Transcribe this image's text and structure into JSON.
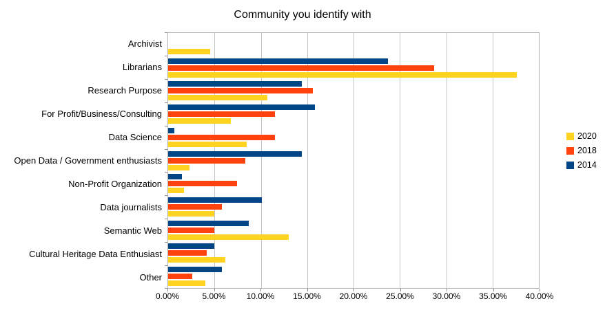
{
  "chart_data": {
    "type": "bar",
    "orientation": "horizontal",
    "title": "Community you identify with",
    "categories": [
      "Archivist",
      "Librarians",
      "Research Purpose",
      "For Profit/Business/Consulting",
      "Data Science",
      "Open Data / Government enthusiasts",
      "Non-Profit Organization",
      "Data journalists",
      "Semantic Web",
      "Cultural Heritage Data Enthusiast",
      "Other"
    ],
    "series": [
      {
        "name": "2020",
        "color": "#FFD320",
        "values": [
          4.5,
          37.6,
          10.7,
          6.8,
          8.5,
          2.3,
          1.7,
          5.0,
          13.0,
          6.2,
          4.0
        ]
      },
      {
        "name": "2018",
        "color": "#FF420E",
        "values": [
          0,
          28.7,
          15.6,
          11.5,
          11.5,
          8.3,
          7.4,
          5.8,
          5.0,
          4.2,
          2.6
        ]
      },
      {
        "name": "2014",
        "color": "#004586",
        "values": [
          0,
          23.7,
          14.4,
          15.8,
          0.7,
          14.4,
          1.5,
          10.1,
          8.7,
          5.0,
          5.8
        ]
      }
    ],
    "bar_draw_order_top_to_bottom": [
      "2014",
      "2018",
      "2020"
    ],
    "x_axis": {
      "min": 0,
      "max": 40,
      "tick_step": 5,
      "tick_labels": [
        "0.00%",
        "5.00%",
        "10.00%",
        "15.00%",
        "20.00%",
        "25.00%",
        "30.00%",
        "35.00%",
        "40.00%"
      ]
    },
    "legend": {
      "position": "right",
      "entries": [
        "2020",
        "2018",
        "2014"
      ]
    },
    "grid": true,
    "ylim_note": "values are percentages of respondents"
  }
}
